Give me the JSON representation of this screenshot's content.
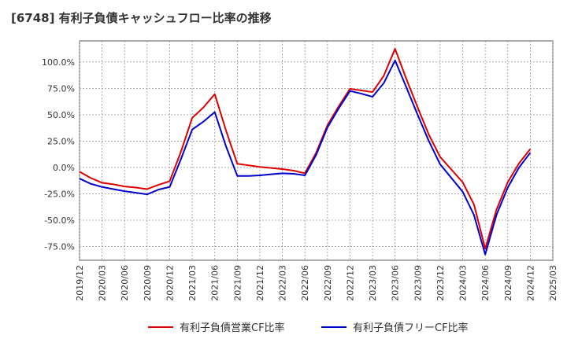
{
  "chart_data": {
    "type": "line",
    "title": "[6748]  有利子負債キャッシュフロー比率の推移",
    "x_tick_labels": [
      "2019/12",
      "2020/03",
      "2020/06",
      "2020/09",
      "2020/12",
      "2021/03",
      "2021/06",
      "2021/09",
      "2021/12",
      "2022/03",
      "2022/06",
      "2022/09",
      "2022/12",
      "2023/03",
      "2023/06",
      "2023/09",
      "2023/12",
      "2024/03",
      "2024/06",
      "2024/09",
      "2024/12",
      "2025/03"
    ],
    "y_tick_labels": [
      "100.0%",
      "75.0%",
      "50.0%",
      "25.0%",
      "0.0%",
      "-25.0%",
      "-50.0%",
      "-75.0%"
    ],
    "y_ticks": [
      100,
      75,
      50,
      25,
      0,
      -25,
      -50,
      -75
    ],
    "ylim": [
      -88,
      120
    ],
    "x_count": 22,
    "grid": true,
    "legend_position": "bottom",
    "series": [
      {
        "name": "有利子負債営業CF比率",
        "color": "#dd0000",
        "points": [
          [
            0,
            -4
          ],
          [
            0.5,
            -10
          ],
          [
            1,
            -14.5
          ],
          [
            1.5,
            -16
          ],
          [
            2,
            -18
          ],
          [
            2.5,
            -19
          ],
          [
            3,
            -20.5
          ],
          [
            3.5,
            -16.5
          ],
          [
            4,
            -13
          ],
          [
            4.5,
            15
          ],
          [
            5,
            47
          ],
          [
            5.5,
            57
          ],
          [
            6,
            69.5
          ],
          [
            6.5,
            35
          ],
          [
            7,
            3.5
          ],
          [
            7.5,
            2
          ],
          [
            8,
            0.5
          ],
          [
            8.5,
            -0.5
          ],
          [
            9,
            -1.5
          ],
          [
            9.5,
            -3
          ],
          [
            10,
            -5.5
          ],
          [
            10.5,
            14
          ],
          [
            11,
            40
          ],
          [
            11.5,
            58
          ],
          [
            12,
            74.5
          ],
          [
            12.5,
            73
          ],
          [
            13,
            71.5
          ],
          [
            13.5,
            87
          ],
          [
            14,
            112.5
          ],
          [
            14.5,
            84
          ],
          [
            15,
            57
          ],
          [
            15.5,
            31
          ],
          [
            16,
            10
          ],
          [
            16.5,
            -2
          ],
          [
            17,
            -14
          ],
          [
            17.5,
            -35
          ],
          [
            18,
            -77
          ],
          [
            18.5,
            -40
          ],
          [
            19,
            -14
          ],
          [
            19.5,
            4
          ],
          [
            20,
            17.5
          ]
        ]
      },
      {
        "name": "有利子負債フリーCF比率",
        "color": "#0000cc",
        "points": [
          [
            0,
            -10.5
          ],
          [
            0.5,
            -15.5
          ],
          [
            1,
            -18.5
          ],
          [
            1.5,
            -20.5
          ],
          [
            2,
            -22.5
          ],
          [
            2.5,
            -24
          ],
          [
            3,
            -25.5
          ],
          [
            3.5,
            -21
          ],
          [
            4,
            -18.5
          ],
          [
            4.5,
            8
          ],
          [
            5,
            36
          ],
          [
            5.5,
            43.5
          ],
          [
            6,
            52.5
          ],
          [
            6.5,
            20
          ],
          [
            7,
            -8
          ],
          [
            7.5,
            -8
          ],
          [
            8,
            -7.5
          ],
          [
            8.5,
            -6.5
          ],
          [
            9,
            -5.5
          ],
          [
            9.5,
            -6
          ],
          [
            10,
            -7.5
          ],
          [
            10.5,
            12
          ],
          [
            11,
            38
          ],
          [
            11.5,
            56
          ],
          [
            12,
            72.5
          ],
          [
            12.5,
            70
          ],
          [
            13,
            67
          ],
          [
            13.5,
            80
          ],
          [
            14,
            101.5
          ],
          [
            14.5,
            76
          ],
          [
            15,
            50
          ],
          [
            15.5,
            25
          ],
          [
            16,
            3
          ],
          [
            16.5,
            -10
          ],
          [
            17,
            -23
          ],
          [
            17.5,
            -45
          ],
          [
            18,
            -82.5
          ],
          [
            18.5,
            -45
          ],
          [
            19,
            -19
          ],
          [
            19.5,
            0
          ],
          [
            20,
            14
          ]
        ]
      }
    ]
  }
}
